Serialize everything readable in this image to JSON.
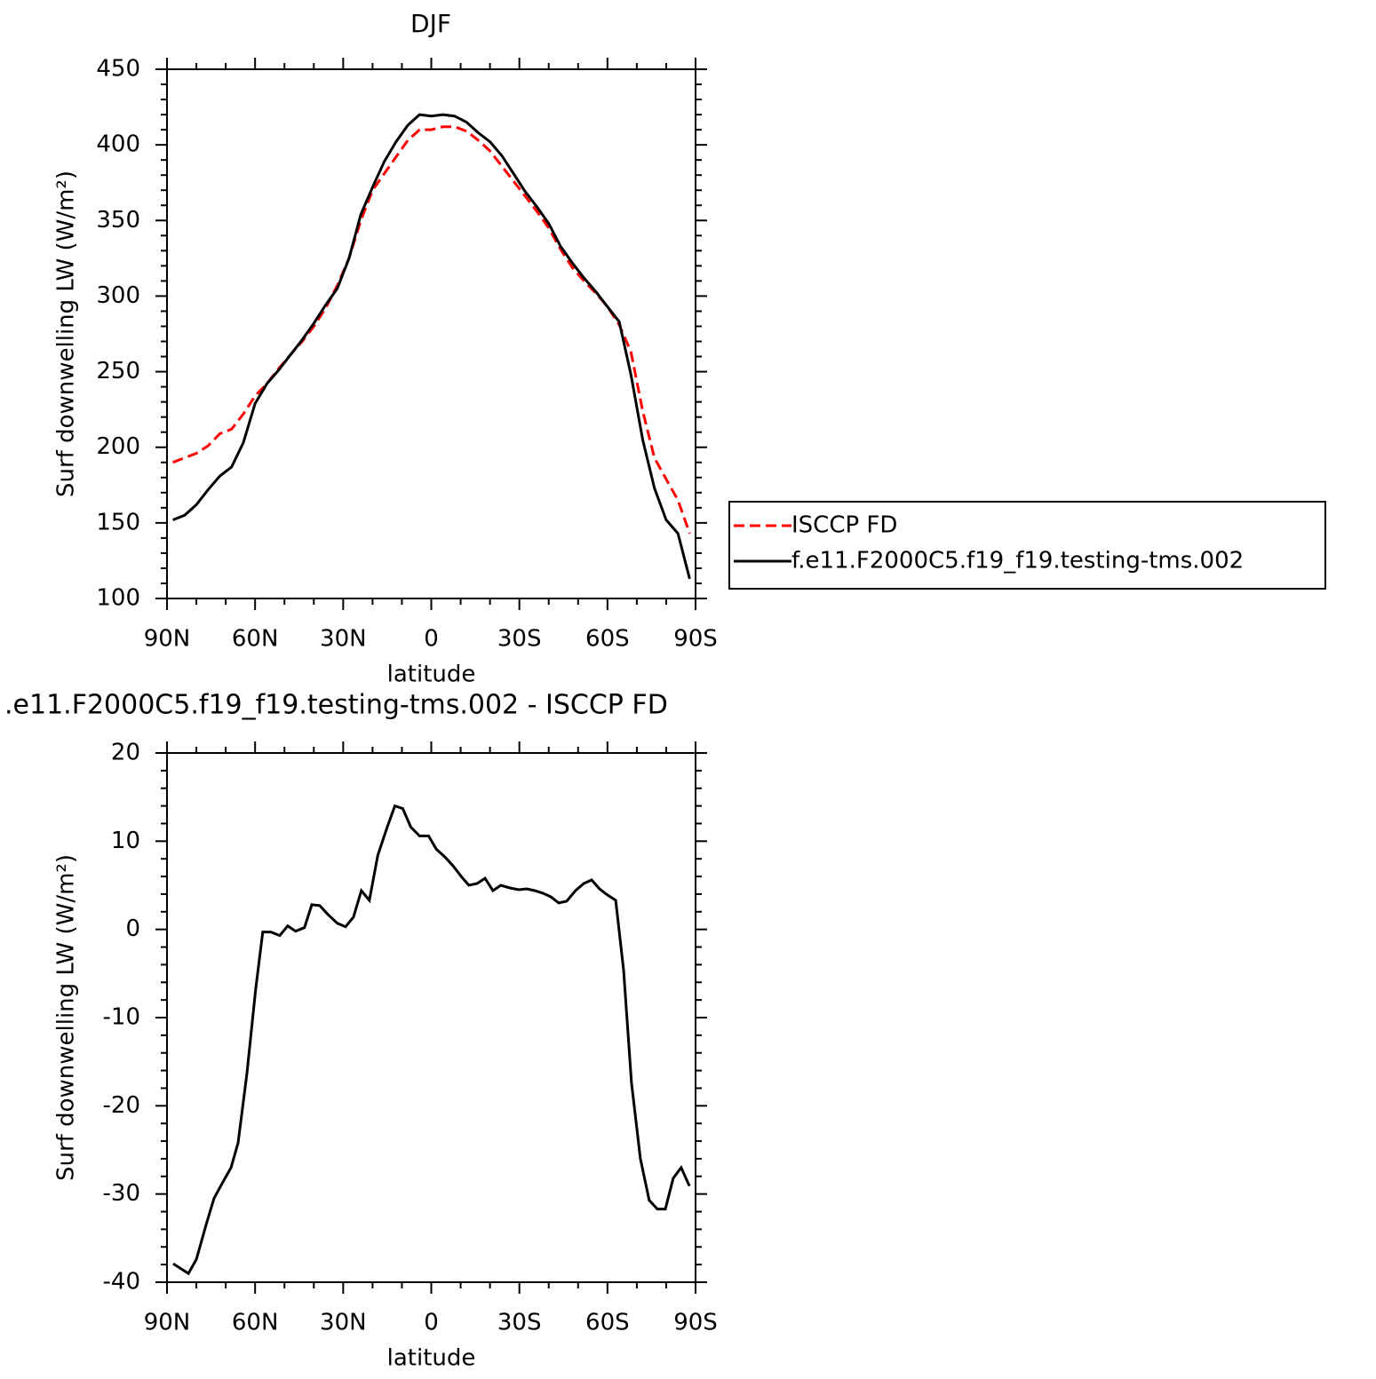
{
  "chart_data": [
    {
      "type": "line",
      "title": "DJF",
      "xlabel": "latitude",
      "ylabel": "Surf downwelling LW (W/m²)",
      "x": [
        88,
        84,
        80,
        76,
        72,
        68,
        64,
        60,
        56,
        52,
        48,
        44,
        40,
        36,
        32,
        28,
        24,
        20,
        16,
        12,
        8,
        4,
        0,
        -4,
        -8,
        -12,
        -16,
        -20,
        -24,
        -28,
        -32,
        -36,
        -40,
        -44,
        -48,
        -52,
        -56,
        -60,
        -64,
        -68,
        -72,
        -76,
        -80,
        -84,
        -88
      ],
      "series": [
        {
          "name": "ISCCP FD",
          "color": "#ff0000",
          "dash": true,
          "values": [
            190,
            193,
            196,
            201,
            209,
            212,
            222,
            234,
            242,
            252,
            261,
            270,
            280,
            292,
            307,
            325,
            350,
            370,
            381,
            392,
            403,
            410,
            410,
            412,
            412,
            409,
            403,
            396,
            386,
            376,
            366,
            356,
            345,
            331,
            319,
            310,
            302,
            293,
            281,
            263,
            224,
            193,
            179,
            165,
            143
          ]
        },
        {
          "name": "f.e11.F2000C5.f19_f19.testing-tms.002",
          "color": "#000000",
          "dash": false,
          "values": [
            152,
            155,
            162,
            172,
            181,
            187,
            203,
            229,
            242,
            251,
            261,
            271,
            282,
            294,
            305,
            325,
            354,
            372,
            389,
            402,
            413,
            420,
            419,
            420,
            419,
            415,
            408,
            402,
            393,
            381,
            369,
            359,
            348,
            333,
            322,
            312,
            303,
            293,
            283,
            248,
            205,
            173,
            152,
            143,
            113
          ]
        }
      ],
      "xlim": [
        90,
        -90
      ],
      "xticks": [
        {
          "value": 90,
          "label": "90N"
        },
        {
          "value": 60,
          "label": "60N"
        },
        {
          "value": 30,
          "label": "30N"
        },
        0,
        {
          "value": -30,
          "label": "30S"
        },
        {
          "value": -60,
          "label": "60S"
        },
        {
          "value": -90,
          "label": "90S"
        }
      ],
      "xminorticks": [
        80,
        70,
        50,
        40,
        20,
        10,
        -10,
        -20,
        -40,
        -50,
        -70,
        -80
      ],
      "ylim": [
        100,
        450
      ],
      "yticks": [
        100,
        150,
        200,
        250,
        300,
        350,
        400,
        450
      ],
      "yminorticks": [
        110,
        120,
        130,
        140,
        160,
        170,
        180,
        190,
        210,
        220,
        230,
        240,
        260,
        270,
        280,
        290,
        310,
        320,
        330,
        340,
        360,
        370,
        380,
        390,
        410,
        420,
        430,
        440
      ],
      "legend": "right"
    },
    {
      "type": "line",
      "title": ".e11.F2000C5.f19_f19.testing-tms.002 - ISCCP FD",
      "xlabel": "latitude",
      "ylabel": "Surf downwelling LW (W/m²)",
      "x": [
        87.9,
        82.7,
        80,
        76.7,
        74,
        71.2,
        68.2,
        65.8,
        62.8,
        59.8,
        57.4,
        54.6,
        51.6,
        48.9,
        46.2,
        43.2,
        40.7,
        38,
        35.2,
        32,
        29.2,
        26.5,
        23.8,
        21.1,
        18.2,
        15.1,
        12.4,
        9.7,
        7,
        4,
        0.9,
        -1.7,
        -4.7,
        -7.4,
        -10.2,
        -12.8,
        -15.6,
        -18.3,
        -21,
        -23.7,
        -26.8,
        -29.8,
        -32.5,
        -35.2,
        -38,
        -40.7,
        -43.4,
        -46.1,
        -49.1,
        -51.9,
        -54.6,
        -57.3,
        -60,
        -62.8,
        -65.5,
        -68.2,
        -71.2,
        -74.2,
        -77,
        -79.7,
        -82.4,
        -85.1,
        -87.9
      ],
      "values": [
        -37.9,
        -39,
        -37.4,
        -33.5,
        -30.5,
        -28.8,
        -27,
        -24.2,
        -16.4,
        -6.8,
        -0.3,
        -0.3,
        -0.7,
        0.4,
        -0.2,
        0.2,
        2.8,
        2.7,
        1.7,
        0.7,
        0.3,
        1.4,
        4.4,
        3.3,
        8.4,
        11.5,
        14,
        13.7,
        11.6,
        10.6,
        10.6,
        9.1,
        8.2,
        7.2,
        6,
        5,
        5.2,
        5.8,
        4.4,
        5,
        4.7,
        4.5,
        4.6,
        4.4,
        4.1,
        3.7,
        3,
        3.2,
        4.4,
        5.2,
        5.6,
        4.6,
        3.9,
        3.3,
        -4.6,
        -17.4,
        -26,
        -30.7,
        -31.7,
        -31.7,
        -28.2,
        -27,
        -29.1
      ],
      "color": "#000000",
      "xlim": [
        90,
        -90
      ],
      "xticks": [
        {
          "value": 90,
          "label": "90N"
        },
        {
          "value": 60,
          "label": "60N"
        },
        {
          "value": 30,
          "label": "30N"
        },
        0,
        {
          "value": -30,
          "label": "30S"
        },
        {
          "value": -60,
          "label": "60S"
        },
        {
          "value": -90,
          "label": "90S"
        }
      ],
      "xminorticks": [
        80,
        70,
        50,
        40,
        20,
        10,
        -10,
        -20,
        -40,
        -50,
        -70,
        -80
      ],
      "ylim": [
        -40,
        20
      ],
      "yticks": [
        -40,
        -30,
        -20,
        -10,
        0,
        10,
        20
      ],
      "yminorticks": [
        -38,
        -36,
        -34,
        -32,
        -28,
        -26,
        -24,
        -22,
        -18,
        -16,
        -14,
        -12,
        -8,
        -6,
        -4,
        -2,
        2,
        4,
        6,
        8,
        12,
        14,
        16,
        18
      ]
    }
  ]
}
